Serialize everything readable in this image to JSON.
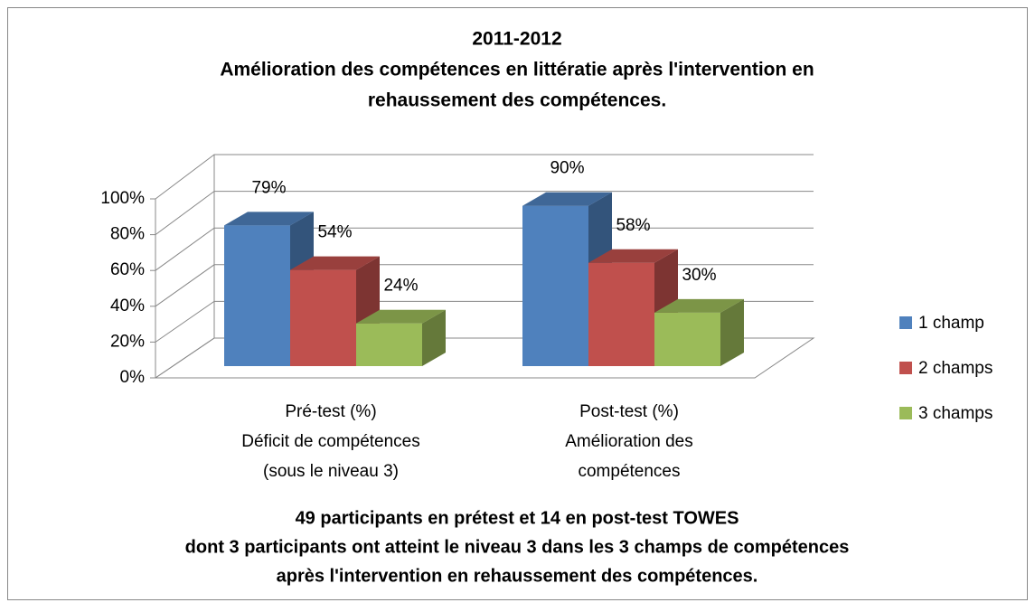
{
  "chart_data": {
    "type": "bar",
    "title": [
      "2011-2012",
      "Amélioration des compétences en littératie après l'intervention en",
      "rehaussement des compétences."
    ],
    "categories": [
      [
        "Pré-test (%)",
        "Déficit de compétences",
        "(sous le niveau 3)"
      ],
      [
        "Post-test (%)",
        "Amélioration des",
        "compétences"
      ]
    ],
    "series": [
      {
        "name": "1 champ",
        "color": "#4f81bd",
        "values": [
          79,
          90
        ],
        "value_labels": [
          "79%",
          "90%"
        ]
      },
      {
        "name": "2 champs",
        "color": "#c0504d",
        "values": [
          54,
          58
        ],
        "value_labels": [
          "54%",
          "58%"
        ]
      },
      {
        "name": "3 champs",
        "color": "#9bbb59",
        "values": [
          24,
          30
        ],
        "value_labels": [
          "24%",
          "30%"
        ]
      }
    ],
    "ylim": [
      0,
      100
    ],
    "yticks": [
      {
        "value": 0,
        "label": "0%"
      },
      {
        "value": 20,
        "label": "20%"
      },
      {
        "value": 40,
        "label": "40%"
      },
      {
        "value": 60,
        "label": "60%"
      },
      {
        "value": 80,
        "label": "80%"
      },
      {
        "value": 100,
        "label": "100%"
      }
    ],
    "grid": true,
    "legend": "right",
    "annotation": [
      "49 participants en prétest et 14 en post-test TOWES",
      "dont 3 participants ont atteint le niveau 3 dans les 3 champs de compétences",
      "après l'intervention en rehaussement des compétences."
    ]
  }
}
